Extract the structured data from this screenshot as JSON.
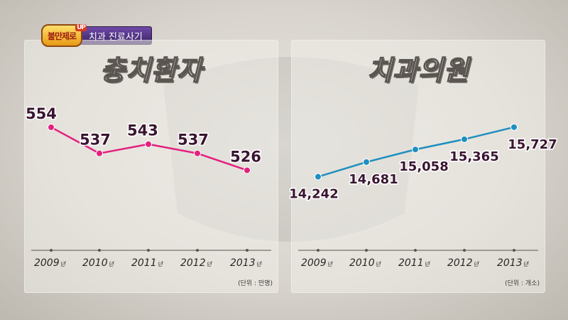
{
  "tag": {
    "logo": "불만제로",
    "logo_badge": "UP",
    "label": "치과 진료사기"
  },
  "colors": {
    "left_series": "#e3207f",
    "right_series": "#1f8fbf",
    "value_text": "#3a1531",
    "axis": "#5a5550"
  },
  "chart_data": [
    {
      "type": "line",
      "title": "충치환자",
      "categories": [
        "2009년",
        "2010년",
        "2011년",
        "2012년",
        "2013년"
      ],
      "tick_labels": [
        {
          "year": "2009",
          "suffix": "년"
        },
        {
          "year": "2010",
          "suffix": "년"
        },
        {
          "year": "2011",
          "suffix": "년"
        },
        {
          "year": "2012",
          "suffix": "년"
        },
        {
          "year": "2013",
          "suffix": "년"
        }
      ],
      "series": [
        {
          "values": [
            554,
            537,
            543,
            537,
            526
          ]
        }
      ],
      "value_labels": [
        "554",
        "537",
        "543",
        "537",
        "526"
      ],
      "unit": "(단위 : 만명)",
      "ylim": [
        510,
        560
      ],
      "grid": false,
      "legend": "none"
    },
    {
      "type": "line",
      "title": "치과의원",
      "categories": [
        "2009년",
        "2010년",
        "2011년",
        "2012년",
        "2013년"
      ],
      "tick_labels": [
        {
          "year": "2009",
          "suffix": "년"
        },
        {
          "year": "2010",
          "suffix": "년"
        },
        {
          "year": "2011",
          "suffix": "년"
        },
        {
          "year": "2012",
          "suffix": "년"
        },
        {
          "year": "2013",
          "suffix": "년"
        }
      ],
      "series": [
        {
          "values": [
            14242,
            14681,
            15058,
            15365,
            15727
          ]
        }
      ],
      "value_labels": [
        "14,242",
        "14,681",
        "15,058",
        "15,365",
        "15,727"
      ],
      "unit": "(단위 : 개소)",
      "ylim": [
        13700,
        16000
      ],
      "grid": false,
      "legend": "none"
    }
  ]
}
